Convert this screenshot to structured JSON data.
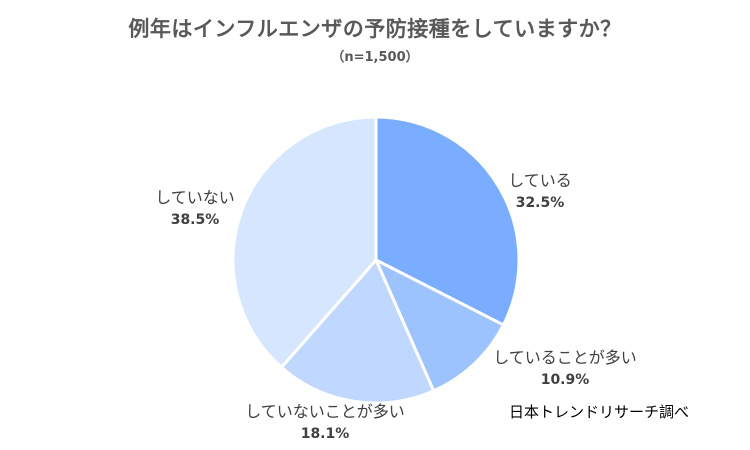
{
  "chart_data": {
    "type": "pie",
    "title": "例年はインフルエンザの予防接種をしていますか？",
    "subtitle": "（n=1,500）",
    "slices": [
      {
        "label": "している",
        "value": 32.5,
        "display": "32.5%",
        "color": "#7aadff"
      },
      {
        "label": "していることが多い",
        "value": 10.9,
        "display": "10.9%",
        "color": "#9dc3ff"
      },
      {
        "label": "していないことが多い",
        "value": 18.1,
        "display": "18.1%",
        "color": "#c0d8ff"
      },
      {
        "label": "していない",
        "value": 38.5,
        "display": "38.5%",
        "color": "#d6e6ff"
      }
    ]
  },
  "source": "日本トレンドリサーチ調べ"
}
